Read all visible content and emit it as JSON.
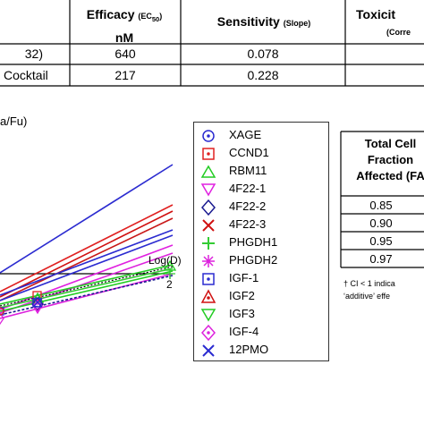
{
  "top_table": {
    "headers": {
      "efficacy": "Efficacy",
      "efficacy_sub": "(EC",
      "efficacy_subscript": "50",
      "efficacy_sub_close": ")",
      "efficacy_unit": "nM",
      "sensitivity": "Sensitivity",
      "sensitivity_sub": "(Slope)",
      "toxicity": "Toxicit",
      "toxicity_sub": "(Corre"
    },
    "rows": [
      {
        "label": "32)",
        "efficacy": "640",
        "sensitivity": "0.078"
      },
      {
        "label": "Cocktail",
        "efficacy": "217",
        "sensitivity": "0.228"
      }
    ]
  },
  "chart_data": {
    "type": "line",
    "ylabel": "a/Fu)",
    "xlabel": "Log(D)",
    "x_tick": "2",
    "series": [
      {
        "name": "XAGE",
        "color": "#2b2bd0",
        "marker": "circle"
      },
      {
        "name": "CCND1",
        "color": "#e02020",
        "marker": "square"
      },
      {
        "name": "RBM11",
        "color": "#22cc22",
        "marker": "triangle-up"
      },
      {
        "name": "4F22-1",
        "color": "#e020e0",
        "marker": "triangle-down"
      },
      {
        "name": "4F22-2",
        "color": "#1a1a90",
        "marker": "diamond"
      },
      {
        "name": "4F22-3",
        "color": "#d01010",
        "marker": "x"
      },
      {
        "name": "PHGDH1",
        "color": "#33cc33",
        "marker": "plus"
      },
      {
        "name": "PHGDH2",
        "color": "#dd22dd",
        "marker": "star"
      },
      {
        "name": "IGF-1",
        "color": "#2b2bd0",
        "marker": "square"
      },
      {
        "name": "IGF2",
        "color": "#d01010",
        "marker": "triangle-up"
      },
      {
        "name": "IGF3",
        "color": "#22cc22",
        "marker": "triangle-down"
      },
      {
        "name": "IGF-4",
        "color": "#dd22dd",
        "marker": "diamond"
      },
      {
        "name": "12PMO",
        "color": "#2b2bd0",
        "marker": "x"
      }
    ]
  },
  "right_table": {
    "header": [
      "Total Cell",
      "Fraction",
      "Affected (FA"
    ],
    "values": [
      "0.85",
      "0.90",
      "0.95",
      "0.97"
    ],
    "note_line1": "† CI < 1 indica",
    "note_line2": "‘additive’ effe"
  }
}
